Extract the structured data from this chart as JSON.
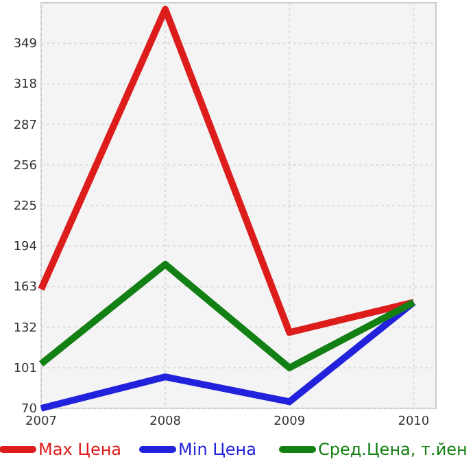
{
  "chart_data": {
    "type": "line",
    "x": [
      2007,
      2008,
      2009,
      2010
    ],
    "xlim": [
      2007,
      2010.18
    ],
    "xticks": [
      2007,
      2008,
      2009,
      2010
    ],
    "ylim": [
      70,
      380
    ],
    "yticks": [
      70,
      101,
      132,
      163,
      194,
      225,
      256,
      287,
      318,
      349
    ],
    "grid": true,
    "legend": "bottom",
    "marker": "none",
    "line_style": "solid",
    "series": [
      {
        "name": "Max Цена",
        "color": "#dd1c1c",
        "values": [
          161,
          375,
          128,
          151
        ]
      },
      {
        "name": "Min Цена",
        "color": "#2222dd",
        "values": [
          70,
          94,
          75,
          151
        ]
      },
      {
        "name": "Сред.Цена, т.йен",
        "color": "#138013",
        "values": [
          104,
          180,
          101,
          151
        ]
      }
    ]
  }
}
